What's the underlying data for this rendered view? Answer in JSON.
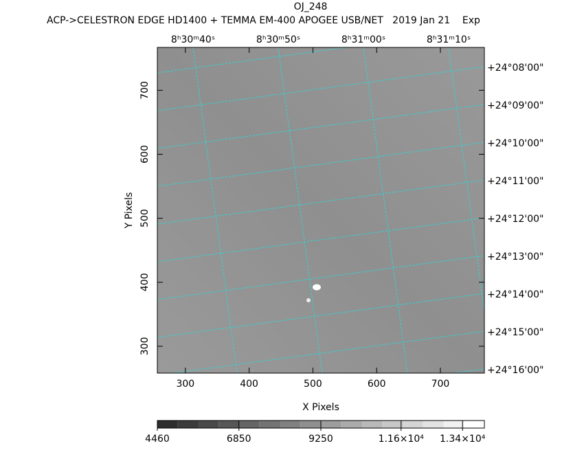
{
  "chart_data": {
    "type": "image",
    "title": "OJ_248",
    "subtitle": "ACP->CELESTRON EDGE HD1400 + TEMMA EM-400 APOGEE USB/NET   2019 Jan 21    Exp",
    "x_label": "X Pixels",
    "y_label": "Y Pixels",
    "xlim": [
      256,
      769
    ],
    "ylim": [
      258,
      767
    ],
    "xticks": [
      300,
      400,
      500,
      600,
      700
    ],
    "yticks": [
      300,
      400,
      500,
      600,
      700
    ],
    "ra_labels": [
      "8ʰ30ᵐ40ˢ",
      "8ʰ30ᵐ50ˢ",
      "8ʰ31ᵐ00ˢ",
      "8ʰ31ᵐ10ˢ"
    ],
    "dec_labels": [
      "+24°08'00\"",
      "+24°09'00\"",
      "+24°10'00\"",
      "+24°11'00\"",
      "+24°12'00\"",
      "+24°13'00\"",
      "+24°14'00\"",
      "+24°15'00\"",
      "+24°16'00\""
    ],
    "colorbar": {
      "lim": [
        4460,
        14040
      ],
      "ticks": [
        4460,
        6850,
        9250,
        {
          "value": 11600,
          "label": "1.16×10⁴"
        },
        {
          "value": 13400,
          "label": "1.34×10⁴"
        }
      ]
    }
  }
}
